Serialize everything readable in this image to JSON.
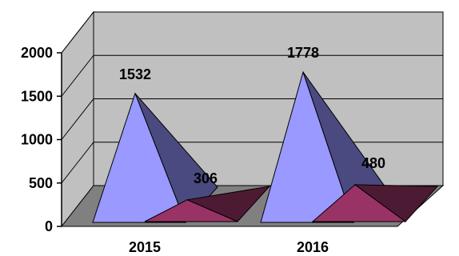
{
  "chart_data": {
    "type": "bar",
    "title": "",
    "xlabel": "",
    "ylabel": "",
    "categories": [
      "2015",
      "2016"
    ],
    "series": [
      {
        "values": [
          1532,
          1778
        ]
      },
      {
        "values": [
          306,
          480
        ]
      }
    ],
    "ylim": [
      0,
      2000
    ],
    "yticks": [
      "0",
      "500",
      "1000",
      "1500",
      "2000"
    ],
    "data_labels": [
      "1532",
      "306",
      "1778",
      "480"
    ],
    "grid": true,
    "legend": "none",
    "style": "3d-pyramid",
    "colors": {
      "series1_light": "#9999ff",
      "series1_dark": "#4a4a80",
      "series2_light": "#993366",
      "series2_dark": "#4d1a33",
      "wall": "#c0c0c0",
      "floor": "#808080"
    }
  }
}
